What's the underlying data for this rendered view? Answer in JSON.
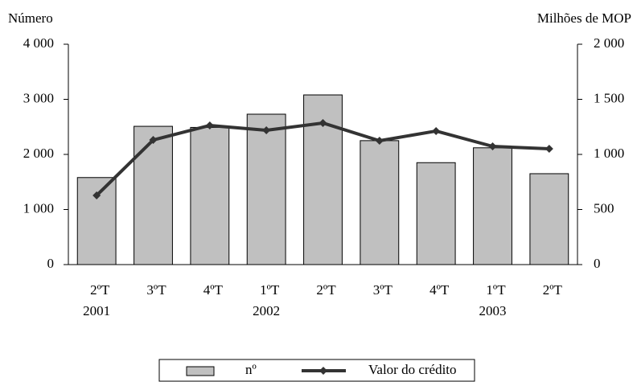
{
  "chart_data": {
    "type": "bar_line",
    "ylabel": "Número",
    "y2label": "Milhões de MOP",
    "categories": [
      "2ºT",
      "3ºT",
      "4ºT",
      "1ºT",
      "2ºT",
      "3ºT",
      "4ºT",
      "1ºT",
      "2ºT"
    ],
    "year_labels": [
      {
        "label": "2001",
        "index": 0
      },
      {
        "label": "2002",
        "index": 3
      },
      {
        "label": "2003",
        "index": 7
      }
    ],
    "series": [
      {
        "name": "nº",
        "type": "bar",
        "color": "#c0c0c0",
        "values": [
          1580,
          2510,
          2490,
          2730,
          3080,
          2250,
          1850,
          2120,
          1650
        ]
      },
      {
        "name": "Valor do crédito",
        "type": "line",
        "axis": "y2",
        "color": "#333333",
        "values": [
          628,
          1131,
          1263,
          1219,
          1285,
          1124,
          1212,
          1073,
          1051
        ]
      }
    ],
    "ylim": [
      0,
      4000
    ],
    "yticks": [
      0,
      {
        "value": 1000,
        "label": "1 000"
      },
      {
        "value": 2000,
        "label": "2 000"
      },
      {
        "value": 3000,
        "label": "3 000"
      },
      {
        "value": 4000,
        "label": "4 000"
      }
    ],
    "y2lim": [
      0,
      2000
    ],
    "y2ticks": [
      0,
      500,
      {
        "value": 1000,
        "label": "1 000"
      },
      {
        "value": 1500,
        "label": "1 500"
      },
      {
        "value": 2000,
        "label": "2 000"
      }
    ],
    "legend": "bottom"
  }
}
